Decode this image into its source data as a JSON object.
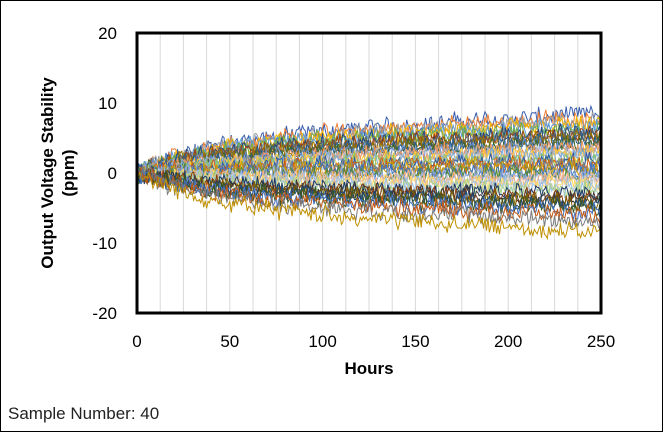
{
  "chart_data": {
    "type": "line",
    "title": "",
    "xlabel": "Hours",
    "ylabel_line1": "Output Voltage Stability",
    "ylabel_line2": "(ppm)",
    "xlim": [
      0,
      250
    ],
    "ylim": [
      -20,
      20
    ],
    "x_ticks": [
      0,
      50,
      100,
      150,
      200,
      250
    ],
    "y_ticks": [
      -20,
      -10,
      0,
      10,
      20
    ],
    "grid": "vertical",
    "series_count": 40,
    "series_end_values_ppm": [
      8.5,
      8.0,
      7.5,
      7.0,
      6.8,
      6.4,
      6.0,
      5.6,
      5.2,
      5.0,
      4.6,
      4.2,
      3.8,
      3.4,
      3.0,
      2.8,
      2.4,
      2.0,
      1.6,
      1.2,
      1.0,
      0.6,
      0.2,
      -0.2,
      -0.6,
      -1.0,
      -1.4,
      -1.8,
      -2.2,
      -2.6,
      -3.0,
      -3.4,
      -3.8,
      -4.2,
      -4.6,
      -5.0,
      -5.5,
      -6.0,
      -7.0,
      -8.5
    ],
    "series_colors": [
      "#3a5fae",
      "#ed7d31",
      "#9e9e9e",
      "#f5b800",
      "#5b9bd5",
      "#70ad47",
      "#264478",
      "#9e480e",
      "#636363",
      "#997300",
      "#255e91",
      "#43682b",
      "#698ed0",
      "#f1975a",
      "#b7b7b7",
      "#ffcd33",
      "#7cafdd",
      "#8cc168",
      "#335aa1",
      "#d26012",
      "#848484",
      "#cc9a00",
      "#3a75c4",
      "#5a8a39",
      "#8faadc",
      "#f4b183",
      "#c9c9c9",
      "#ffd966",
      "#9dc3e6",
      "#a9d18e",
      "#1f3864",
      "#843c0c",
      "#3a3a3a",
      "#7f6000",
      "#1f4e79",
      "#385723",
      "#4472c4",
      "#c55a11",
      "#7b7b7b",
      "#bf9000"
    ]
  },
  "note": "Sample Number: 40"
}
